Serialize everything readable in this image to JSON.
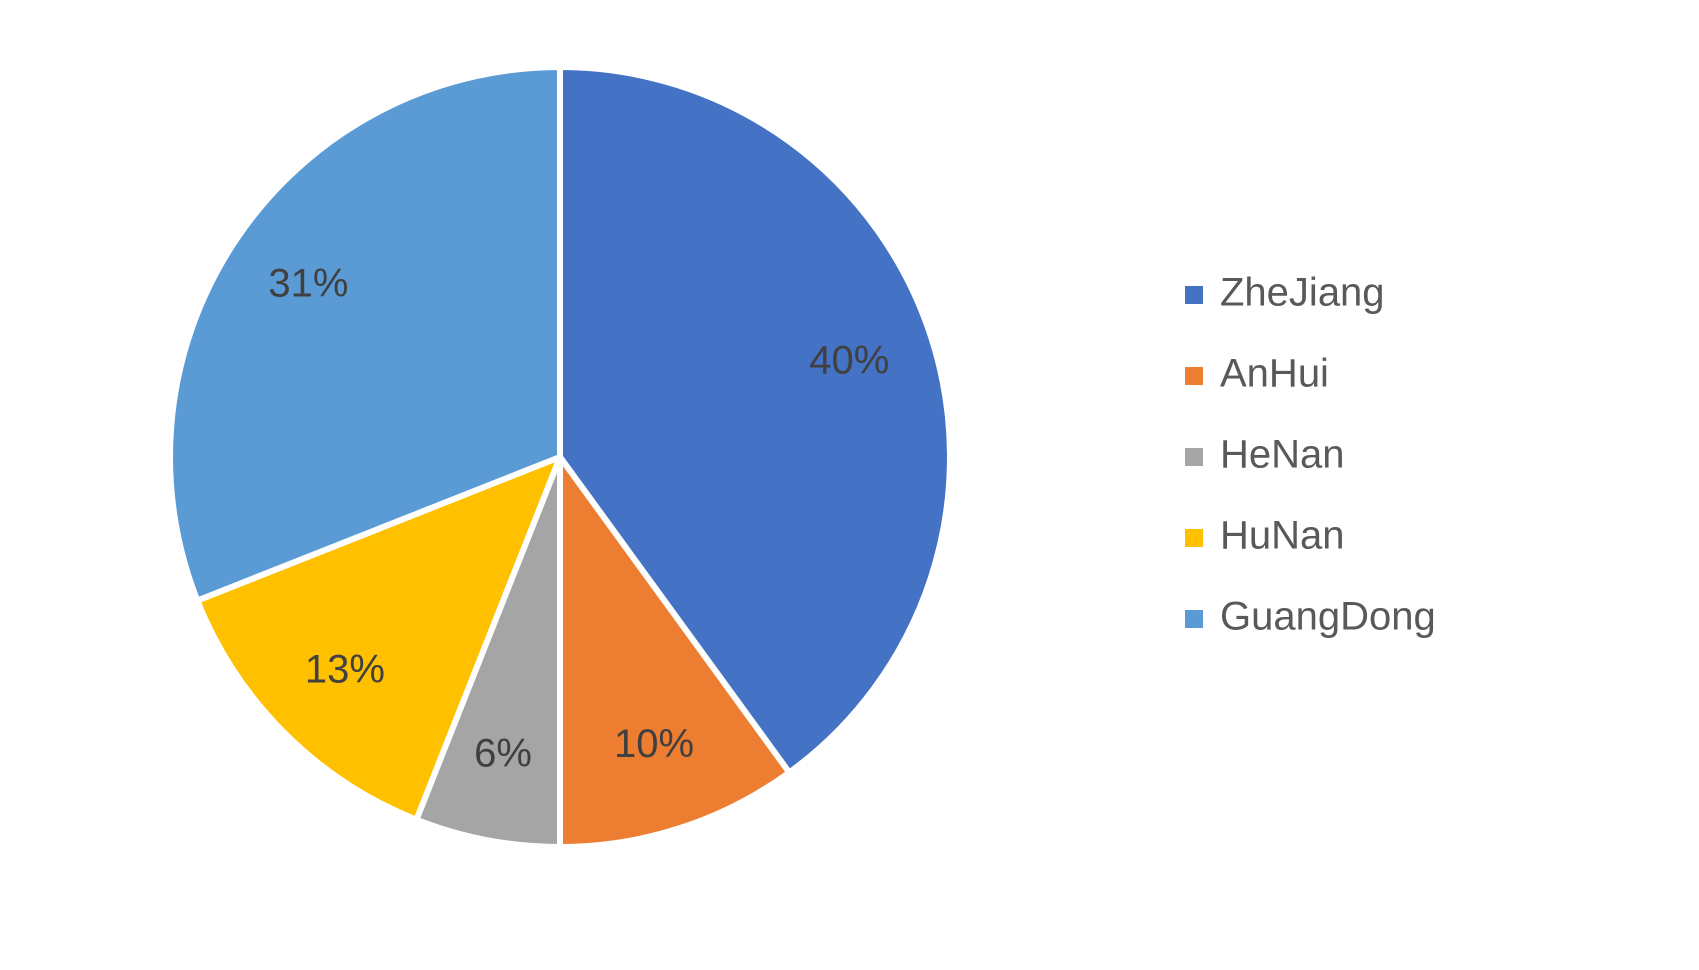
{
  "chart_data": {
    "type": "pie",
    "categories": [
      "ZheJiang",
      "AnHui",
      "HeNan",
      "HuNan",
      "GuangDong"
    ],
    "values": [
      40,
      10,
      6,
      13,
      31
    ],
    "value_labels": [
      "40%",
      "10%",
      "6%",
      "13%",
      "31%"
    ],
    "colors": [
      "#4472c4",
      "#ed7d31",
      "#a5a5a5",
      "#ffc000",
      "#5b9bd5"
    ],
    "legend": "right"
  }
}
